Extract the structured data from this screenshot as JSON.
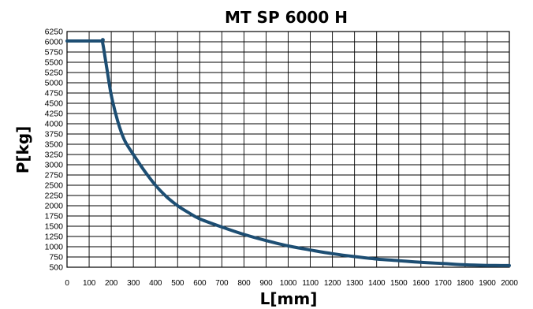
{
  "chart_data": {
    "type": "line",
    "title": "MT SP 6000 H",
    "xlabel": "L[mm]",
    "ylabel": "P[kg]",
    "xlim": [
      0,
      2000
    ],
    "ylim": [
      500,
      6250
    ],
    "grid": true,
    "x_ticks": [
      0,
      100,
      200,
      300,
      400,
      500,
      600,
      700,
      800,
      900,
      1000,
      1100,
      1200,
      1300,
      1400,
      1500,
      1600,
      1700,
      1800,
      1900,
      2000
    ],
    "y_ticks": [
      500,
      750,
      1000,
      1250,
      1500,
      1750,
      2000,
      2250,
      2500,
      2750,
      3000,
      3250,
      3500,
      3750,
      4000,
      4250,
      4500,
      4750,
      5000,
      5250,
      5500,
      5750,
      6000,
      6250
    ],
    "color": "#1d4e73",
    "series": [
      {
        "x": [
          0,
          150,
          160,
          180,
          200,
          230,
          260,
          300,
          350,
          400,
          450,
          500,
          550,
          600,
          700,
          800,
          900,
          1000,
          1100,
          1200,
          1300,
          1400,
          1500,
          1600,
          1700,
          1800,
          1900,
          2000
        ],
        "y": [
          6020,
          6020,
          6000,
          5350,
          4700,
          4050,
          3600,
          3250,
          2850,
          2500,
          2220,
          2000,
          1830,
          1680,
          1480,
          1300,
          1150,
          1020,
          920,
          830,
          760,
          700,
          660,
          620,
          590,
          560,
          545,
          540
        ]
      }
    ]
  }
}
